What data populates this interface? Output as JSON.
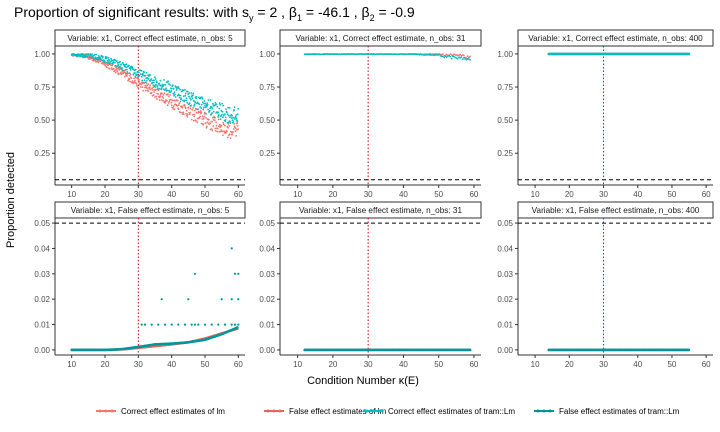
{
  "title": {
    "prefix": "Proportion of significant results:  with s",
    "sy_sub": "y",
    "sy_val": " = 2 , β",
    "b1_sub": "1",
    "b1_val": " = -46.1 , β",
    "b2_sub": "2",
    "b2_val": " = -0.9"
  },
  "chart_data": {
    "type": "scatter",
    "xlabel": "Condition Number κ(E)",
    "ylabel": "Proportion detected",
    "colors": {
      "Correct effect estimates of lm": "#f8766d",
      "False effect estimates of lm": "#e0695f",
      "Correct effect estimates of tram::Lm": "#00bfc4",
      "False effect estimates of tram::Lm": "#00969a"
    },
    "series_names": [
      "Correct effect estimates of lm",
      "False effect estimates of lm",
      "Correct effect estimates of tram::Lm",
      "False effect estimates of tram::Lm"
    ],
    "reference_lines": {
      "alpha_dashed": 0.05,
      "kappa_dotted": 30
    },
    "grid": false,
    "legend_position": "bottom",
    "panels": [
      {
        "strip": "Variable: x1, Correct effect estimate, n_obs: 5",
        "xlim": [
          5,
          62
        ],
        "xticks": [
          10,
          20,
          30,
          40,
          50,
          60
        ],
        "ylim": [
          0.01,
          1.06
        ],
        "yticks": [
          0.25,
          0.5,
          0.75,
          1.0
        ],
        "ytick_labels": [
          "0.25",
          "0.50",
          "0.75",
          "1.00"
        ],
        "series": [
          {
            "name": "Correct effect estimates of lm",
            "x": [
              10,
              15,
              20,
              25,
              30,
              35,
              40,
              45,
              50,
              55,
              60
            ],
            "y": [
              1.0,
              0.98,
              0.93,
              0.86,
              0.78,
              0.71,
              0.64,
              0.57,
              0.5,
              0.45,
              0.41
            ]
          },
          {
            "name": "Correct effect estimates of tram::Lm",
            "x": [
              10,
              15,
              20,
              25,
              30,
              35,
              40,
              45,
              50,
              55,
              60
            ],
            "y": [
              1.0,
              0.99,
              0.96,
              0.91,
              0.85,
              0.79,
              0.74,
              0.67,
              0.61,
              0.56,
              0.52
            ]
          }
        ]
      },
      {
        "strip": "Variable: x1, Correct effect estimate, n_obs: 31",
        "xlim": [
          5,
          62
        ],
        "xticks": [
          10,
          20,
          30,
          40,
          50,
          60
        ],
        "ylim": [
          0.01,
          1.06
        ],
        "yticks": [
          0.25,
          0.5,
          0.75,
          1.0
        ],
        "ytick_labels": [
          "0.25",
          "0.50",
          "0.75",
          "1.00"
        ],
        "series": [
          {
            "name": "Correct effect estimates of lm",
            "x": [
              12,
              20,
              30,
              40,
              50,
              55,
              59
            ],
            "y": [
              1.0,
              1.0,
              1.0,
              1.0,
              1.0,
              0.99,
              0.97
            ]
          },
          {
            "name": "Correct effect estimates of tram::Lm",
            "x": [
              12,
              20,
              30,
              40,
              50,
              55,
              59
            ],
            "y": [
              1.0,
              1.0,
              1.0,
              1.0,
              0.99,
              0.97,
              0.96
            ]
          }
        ]
      },
      {
        "strip": "Variable: x1, Correct effect estimate, n_obs: 400",
        "xlim": [
          5,
          62
        ],
        "xticks": [
          10,
          20,
          30,
          40,
          50,
          60
        ],
        "ylim": [
          0.01,
          1.06
        ],
        "yticks": [
          0.25,
          0.5,
          0.75,
          1.0
        ],
        "ytick_labels": [
          "0.25",
          "0.50",
          "0.75",
          "1.00"
        ],
        "series": [
          {
            "name": "Correct effect estimates of lm",
            "x": [
              14,
              25,
              35,
              45,
              55
            ],
            "y": [
              1.0,
              1.0,
              1.0,
              1.0,
              1.0
            ]
          },
          {
            "name": "Correct effect estimates of tram::Lm",
            "x": [
              14,
              25,
              35,
              45,
              55
            ],
            "y": [
              1.0,
              1.0,
              1.0,
              1.0,
              1.0
            ]
          }
        ]
      },
      {
        "strip": "Variable: x1, False effect estimate, n_obs: 5",
        "xlim": [
          5,
          62
        ],
        "xticks": [
          10,
          20,
          30,
          40,
          50,
          60
        ],
        "ylim": [
          -0.002,
          0.052
        ],
        "yticks": [
          0.0,
          0.01,
          0.02,
          0.03,
          0.04,
          0.05
        ],
        "ytick_labels": [
          "0.00",
          "0.01",
          "0.02",
          "0.03",
          "0.04",
          "0.05"
        ],
        "series": [
          {
            "name": "False effect estimates of lm",
            "x": [
              10,
              15,
              20,
              25,
              30,
              35,
              40,
              45,
              50,
              55,
              60
            ],
            "y": [
              0.0,
              0.0,
              0.0,
              0.0002,
              0.0008,
              0.0015,
              0.0022,
              0.003,
              0.0045,
              0.0065,
              0.0085
            ]
          },
          {
            "name": "False effect estimates of tram::Lm",
            "x": [
              10,
              15,
              20,
              25,
              30,
              35,
              40,
              45,
              50,
              55,
              60
            ],
            "y": [
              0.0,
              0.0,
              0.0,
              0.0003,
              0.0012,
              0.0022,
              0.0025,
              0.003,
              0.004,
              0.0062,
              0.009
            ]
          }
        ],
        "scattered_points_tram": {
          "x": [
            31,
            32,
            34,
            36,
            38,
            40,
            42,
            44,
            46,
            47,
            48,
            50,
            52,
            54,
            56,
            58,
            59,
            60,
            37,
            45,
            47,
            55,
            58,
            59,
            60,
            58,
            60
          ],
          "y": [
            0.01,
            0.01,
            0.01,
            0.01,
            0.01,
            0.01,
            0.01,
            0.01,
            0.01,
            0.01,
            0.01,
            0.01,
            0.01,
            0.01,
            0.01,
            0.01,
            0.01,
            0.01,
            0.02,
            0.02,
            0.03,
            0.02,
            0.02,
            0.03,
            0.03,
            0.04,
            0.02
          ]
        }
      },
      {
        "strip": "Variable: x1, False effect estimate, n_obs: 31",
        "xlim": [
          5,
          62
        ],
        "xticks": [
          10,
          20,
          30,
          40,
          50,
          60
        ],
        "ylim": [
          -0.002,
          0.052
        ],
        "yticks": [
          0.0,
          0.01,
          0.02,
          0.03,
          0.04,
          0.05
        ],
        "ytick_labels": [
          "0.00",
          "0.01",
          "0.02",
          "0.03",
          "0.04",
          "0.05"
        ],
        "series": [
          {
            "name": "False effect estimates of lm",
            "x": [
              12,
              59
            ],
            "y": [
              0.0,
              0.0
            ]
          },
          {
            "name": "False effect estimates of tram::Lm",
            "x": [
              12,
              59
            ],
            "y": [
              0.0,
              0.0
            ]
          }
        ]
      },
      {
        "strip": "Variable: x1, False effect estimate, n_obs: 400",
        "xlim": [
          5,
          62
        ],
        "xticks": [
          10,
          20,
          30,
          40,
          50,
          60
        ],
        "ylim": [
          -0.002,
          0.052
        ],
        "yticks": [
          0.0,
          0.01,
          0.02,
          0.03,
          0.04,
          0.05
        ],
        "ytick_labels": [
          "0.00",
          "0.01",
          "0.02",
          "0.03",
          "0.04",
          "0.05"
        ],
        "series": [
          {
            "name": "False effect estimates of lm",
            "x": [
              14,
              55
            ],
            "y": [
              0.0,
              0.0
            ]
          },
          {
            "name": "False effect estimates of tram::Lm",
            "x": [
              14,
              55
            ],
            "y": [
              0.0,
              0.0
            ]
          }
        ]
      }
    ]
  }
}
